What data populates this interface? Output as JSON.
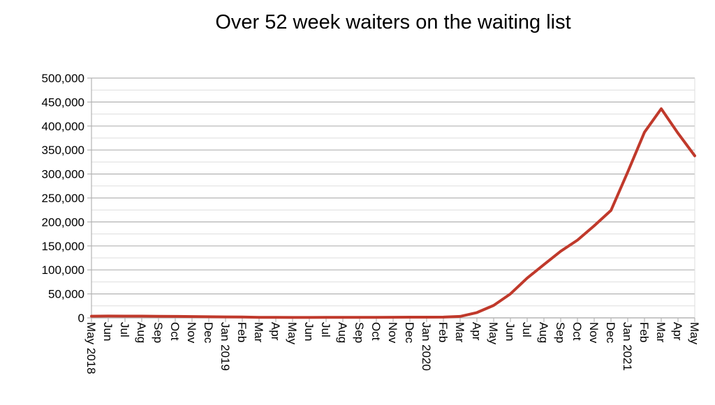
{
  "chart_data": {
    "type": "line",
    "title": "Over 52 week waiters on the waiting list",
    "xlabel": "",
    "ylabel": "",
    "ylim": [
      0,
      500000
    ],
    "y_ticks": [
      "0",
      "50,000",
      "100,000",
      "150,000",
      "200,000",
      "250,000",
      "300,000",
      "350,000",
      "400,000",
      "450,000",
      "500,000"
    ],
    "grid": true,
    "legend": "none",
    "line_color": "#c0392b",
    "categories": [
      "May 2018",
      "Jun",
      "Jul",
      "Aug",
      "Sep",
      "Oct",
      "Nov",
      "Dec",
      "Jan 2019",
      "Feb",
      "Mar",
      "Apr",
      "May",
      "Jun",
      "Jul",
      "Aug",
      "Sep",
      "Oct",
      "Nov",
      "Dec",
      "Jan 2020",
      "Feb",
      "Mar",
      "Apr",
      "May",
      "Jun",
      "Jul",
      "Aug",
      "Sep",
      "Oct",
      "Nov",
      "Dec",
      "Jan 2021",
      "Feb",
      "Mar",
      "Apr",
      "May"
    ],
    "series": [
      {
        "values": [
          3500,
          3800,
          3700,
          3600,
          3300,
          3000,
          2700,
          2300,
          2000,
          1800,
          1200,
          1000,
          900,
          900,
          1000,
          1100,
          1100,
          1200,
          1300,
          1400,
          1500,
          1600,
          3100,
          11000,
          26000,
          50000,
          83000,
          111000,
          139000,
          162000,
          192000,
          224000,
          304000,
          387000,
          436000,
          385000,
          338000
        ]
      }
    ]
  }
}
